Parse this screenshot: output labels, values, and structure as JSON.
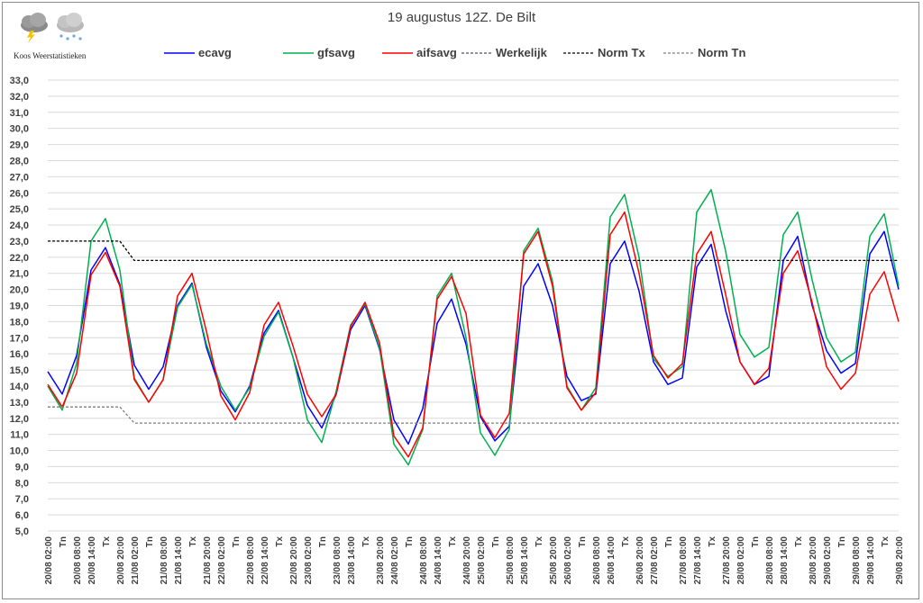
{
  "title": "19 augustus 12Z. De Bilt",
  "brand": "Koos Weerstatistieken",
  "icons": [
    "storm-cloud-icon",
    "rain-cloud-icon"
  ],
  "legend": [
    {
      "name": "ecavg",
      "color": "#0000ff",
      "dash": "solid"
    },
    {
      "name": "gfsavg",
      "color": "#00b050",
      "dash": "solid"
    },
    {
      "name": "aifsavg",
      "color": "#ff0000",
      "dash": "solid"
    },
    {
      "name": "Werkelijk",
      "color": "#44546a",
      "dash": "dashed"
    },
    {
      "name": "Norm Tx",
      "color": "#000000",
      "dash": "dashed"
    },
    {
      "name": "Norm Tn",
      "color": "#7f7f7f",
      "dash": "dashed"
    }
  ],
  "chart_data": {
    "type": "line",
    "title": "19 augustus 12Z. De Bilt",
    "ylim": [
      5.0,
      33.0
    ],
    "ytick_step": 1,
    "grid": true,
    "legend_position": "top",
    "categories": [
      "20/08 02:00",
      "Tn",
      "20/08 08:00",
      "20/08 14:00",
      "Tx",
      "20/08 20:00",
      "21/08 02:00",
      "Tn",
      "21/08 08:00",
      "21/08 14:00",
      "Tx",
      "21/08 20:00",
      "22/08 02:00",
      "Tn",
      "22/08 08:00",
      "22/08 14:00",
      "Tx",
      "22/08 20:00",
      "23/08 02:00",
      "Tn",
      "23/08 08:00",
      "23/08 14:00",
      "Tx",
      "23/08 20:00",
      "24/08 02:00",
      "Tn",
      "24/08 08:00",
      "24/08 14:00",
      "Tx",
      "24/08 20:00",
      "25/08 02:00",
      "Tn",
      "25/08 08:00",
      "25/08 14:00",
      "Tx",
      "25/08 20:00",
      "26/08 02:00",
      "Tn",
      "26/08 08:00",
      "26/08 14:00",
      "Tx",
      "26/08 20:00",
      "27/08 02:00",
      "Tn",
      "27/08 08:00",
      "27/08 14:00",
      "Tx",
      "27/08 20:00",
      "28/08 02:00",
      "Tn",
      "28/08 08:00",
      "28/08 14:00",
      "Tx",
      "28/08 20:00",
      "29/08 02:00",
      "Tn",
      "29/08 08:00",
      "29/08 14:00",
      "Tx",
      "29/08 20:00"
    ],
    "series": [
      {
        "name": "ecavg",
        "color": "#0000ff",
        "values": [
          14.9,
          13.5,
          15.9,
          21.2,
          22.6,
          20.3,
          15.3,
          13.8,
          15.2,
          19.0,
          20.4,
          16.4,
          13.7,
          12.4,
          14.0,
          17.3,
          18.7,
          15.8,
          12.8,
          11.4,
          13.5,
          17.5,
          19.0,
          16.3,
          11.9,
          10.4,
          12.6,
          17.9,
          19.4,
          16.6,
          12.1,
          10.6,
          11.5,
          20.2,
          21.6,
          19.0,
          14.6,
          13.1,
          13.5,
          21.6,
          23.0,
          19.9,
          15.5,
          14.1,
          14.5,
          21.4,
          22.8,
          18.7,
          15.5,
          14.1,
          14.6,
          21.8,
          23.3,
          19.0,
          16.2,
          14.8,
          15.4,
          22.2,
          23.6,
          20.0
        ]
      },
      {
        "name": "gfsavg",
        "color": "#00b050",
        "values": [
          14.0,
          12.5,
          15.4,
          23.0,
          24.4,
          21.2,
          14.5,
          13.0,
          14.4,
          18.9,
          20.3,
          16.6,
          14.0,
          12.5,
          13.9,
          17.1,
          18.6,
          15.8,
          11.9,
          10.5,
          13.7,
          17.8,
          19.1,
          16.4,
          10.4,
          9.1,
          11.3,
          19.6,
          21.0,
          17.0,
          11.1,
          9.7,
          11.3,
          22.4,
          23.8,
          20.5,
          14.0,
          12.5,
          13.9,
          24.5,
          25.9,
          22.0,
          15.7,
          14.6,
          15.2,
          24.8,
          26.2,
          22.4,
          17.2,
          15.8,
          16.4,
          23.4,
          24.8,
          20.6,
          17.0,
          15.5,
          16.1,
          23.3,
          24.7,
          20.2
        ]
      },
      {
        "name": "aifsavg",
        "color": "#ff0000",
        "values": [
          14.1,
          12.7,
          14.8,
          20.9,
          22.3,
          20.2,
          14.4,
          13.0,
          14.4,
          19.6,
          21.0,
          17.4,
          13.4,
          11.9,
          13.6,
          17.8,
          19.2,
          16.5,
          13.5,
          12.1,
          13.5,
          17.7,
          19.2,
          16.7,
          10.9,
          9.6,
          11.4,
          19.4,
          20.8,
          18.5,
          12.2,
          10.8,
          12.3,
          22.2,
          23.6,
          20.2,
          13.9,
          12.5,
          13.6,
          23.4,
          24.8,
          21.0,
          15.9,
          14.5,
          15.4,
          22.2,
          23.6,
          19.7,
          15.5,
          14.1,
          15.1,
          21.0,
          22.4,
          19.2,
          15.2,
          13.8,
          14.8,
          19.7,
          21.1,
          18.0
        ]
      },
      {
        "name": "Norm Tx",
        "color": "#000000",
        "dash": "dashed",
        "values": [
          23.0,
          23.0,
          23.0,
          23.0,
          23.0,
          23.0,
          21.8,
          21.8,
          21.8,
          21.8,
          21.8,
          21.8,
          21.8,
          21.8,
          21.8,
          21.8,
          21.8,
          21.8,
          21.8,
          21.8,
          21.8,
          21.8,
          21.8,
          21.8,
          21.8,
          21.8,
          21.8,
          21.8,
          21.8,
          21.8,
          21.8,
          21.8,
          21.8,
          21.8,
          21.8,
          21.8,
          21.8,
          21.8,
          21.8,
          21.8,
          21.8,
          21.8,
          21.8,
          21.8,
          21.8,
          21.8,
          21.8,
          21.8,
          21.8,
          21.8,
          21.8,
          21.8,
          21.8,
          21.8,
          21.8,
          21.8,
          21.8,
          21.8,
          21.8,
          21.8
        ]
      },
      {
        "name": "Norm Tn",
        "color": "#7f7f7f",
        "dash": "dashed",
        "values": [
          12.7,
          12.7,
          12.7,
          12.7,
          12.7,
          12.7,
          11.7,
          11.7,
          11.7,
          11.7,
          11.7,
          11.7,
          11.7,
          11.7,
          11.7,
          11.7,
          11.7,
          11.7,
          11.7,
          11.7,
          11.7,
          11.7,
          11.7,
          11.7,
          11.7,
          11.7,
          11.7,
          11.7,
          11.7,
          11.7,
          11.7,
          11.7,
          11.7,
          11.7,
          11.7,
          11.7,
          11.7,
          11.7,
          11.7,
          11.7,
          11.7,
          11.7,
          11.7,
          11.7,
          11.7,
          11.7,
          11.7,
          11.7,
          11.7,
          11.7,
          11.7,
          11.7,
          11.7,
          11.7,
          11.7,
          11.7,
          11.7,
          11.7,
          11.7,
          11.7
        ]
      }
    ]
  }
}
